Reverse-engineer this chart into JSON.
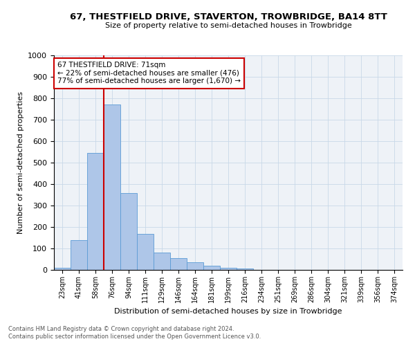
{
  "title": "67, THESTFIELD DRIVE, STAVERTON, TROWBRIDGE, BA14 8TT",
  "subtitle": "Size of property relative to semi-detached houses in Trowbridge",
  "xlabel": "Distribution of semi-detached houses by size in Trowbridge",
  "ylabel": "Number of semi-detached properties",
  "bar_values": [
    10,
    140,
    545,
    770,
    358,
    168,
    80,
    55,
    35,
    20,
    10,
    5,
    0,
    0,
    0,
    0,
    0,
    0,
    0,
    0,
    0
  ],
  "categories": [
    "23sqm",
    "41sqm",
    "58sqm",
    "76sqm",
    "94sqm",
    "111sqm",
    "129sqm",
    "146sqm",
    "164sqm",
    "181sqm",
    "199sqm",
    "216sqm",
    "234sqm",
    "251sqm",
    "269sqm",
    "286sqm",
    "304sqm",
    "321sqm",
    "339sqm",
    "356sqm",
    "374sqm"
  ],
  "bar_color": "#aec6e8",
  "bar_edge_color": "#5b9bd5",
  "property_label": "67 THESTFIELD DRIVE: 71sqm",
  "pct_smaller": 22,
  "pct_larger": 77,
  "count_smaller": 476,
  "count_larger": 1670,
  "vline_color": "#cc0000",
  "annotation_box_color": "#cc0000",
  "grid_color": "#c8d8e8",
  "bg_color": "#eef2f7",
  "ylim": [
    0,
    1000
  ],
  "yticks": [
    0,
    100,
    200,
    300,
    400,
    500,
    600,
    700,
    800,
    900,
    1000
  ],
  "footnote1": "Contains HM Land Registry data © Crown copyright and database right 2024.",
  "footnote2": "Contains public sector information licensed under the Open Government Licence v3.0."
}
